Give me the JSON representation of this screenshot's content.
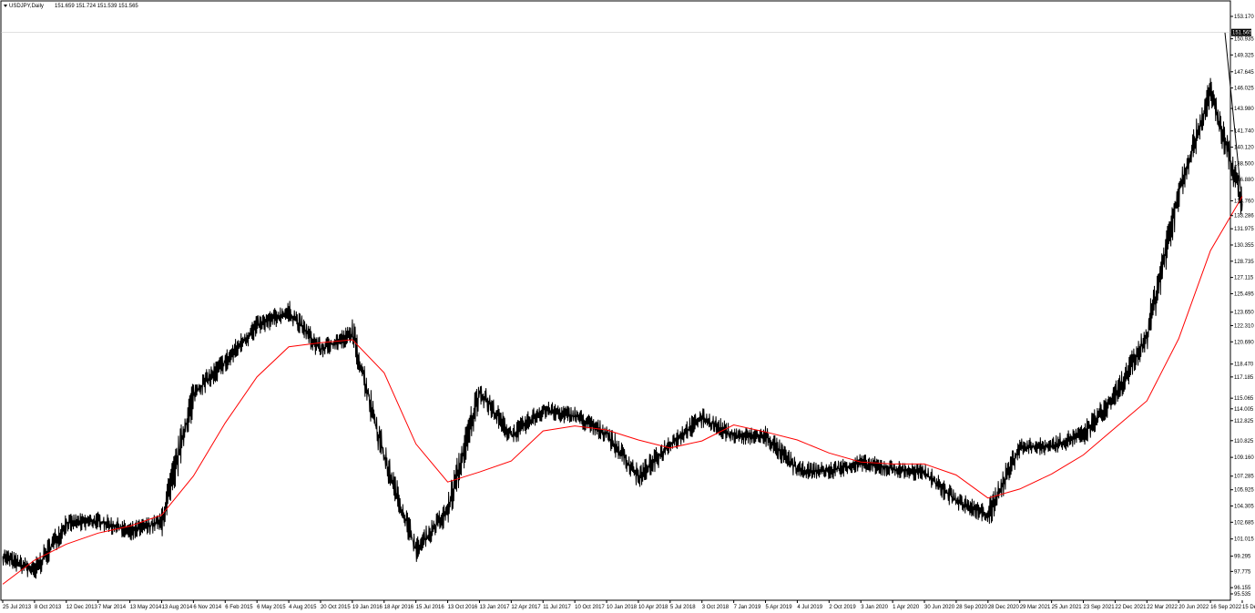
{
  "header": {
    "menu_icon": "triangle-down-icon",
    "symbol_timeframe": "USDJPY,Daily",
    "ohlc": "151.659 151.724 151.539 151.565"
  },
  "chart_data": {
    "type": "line",
    "title": "USDJPY,Daily",
    "colors": {
      "price": "#000000",
      "moving_average": "#ff0000",
      "background": "#ffffff",
      "last_price_label": "#000000"
    },
    "ylim": [
      95.535,
      153.17
    ],
    "y_ticks": [
      "153.170",
      "150.935",
      "149.325",
      "147.645",
      "146.025",
      "143.980",
      "141.740",
      "140.120",
      "138.500",
      "136.880",
      "134.760",
      "133.286",
      "131.975",
      "130.355",
      "128.735",
      "127.115",
      "125.495",
      "123.650",
      "122.310",
      "120.690",
      "118.470",
      "117.185",
      "115.065",
      "114.005",
      "112.825",
      "110.825",
      "109.160",
      "107.285",
      "105.925",
      "104.305",
      "102.685",
      "101.015",
      "99.295",
      "97.775",
      "96.155",
      "95.535"
    ],
    "last_price": "151.565",
    "x_ticks": [
      "25 Jul 2013",
      "8 Oct 2013",
      "12 Dec 2013",
      "7 Mar 2014",
      "13 May 2014",
      "13 Aug 2014",
      "6 Nov 2014",
      "6 Feb 2015",
      "6 May 2015",
      "4 Aug 2015",
      "20 Oct 2015",
      "19 Jan 2016",
      "18 Apr 2016",
      "15 Jul 2016",
      "13 Oct 2016",
      "13 Jan 2017",
      "12 Apr 2017",
      "11 Jul 2017",
      "10 Oct 2017",
      "10 Jan 2018",
      "10 Apr 2018",
      "5 Jul 2018",
      "3 Oct 2018",
      "7 Jan 2019",
      "5 Apr 2019",
      "4 Jul 2019",
      "2 Oct 2019",
      "3 Jan 2020",
      "1 Apr 2020",
      "30 Jun 2020",
      "28 Sep 2020",
      "28 Dec 2020",
      "29 Mar 2021",
      "25 Jun 2021",
      "23 Sep 2021",
      "22 Dec 2021",
      "22 Mar 2022",
      "20 Jun 2022",
      "16 Sep 2022",
      "15 Dec 2022"
    ],
    "series": [
      {
        "x": [
          "25 Jul 2013",
          "8 Oct 2013",
          "12 Dec 2013",
          "7 Mar 2014",
          "13 May 2014",
          "13 Aug 2014",
          "6 Nov 2014",
          "6 Feb 2015",
          "6 May 2015",
          "4 Aug 2015",
          "20 Oct 2015",
          "19 Jan 2016",
          "18 Apr 2016",
          "15 Jul 2016",
          "13 Oct 2016",
          "13 Jan 2017",
          "12 Apr 2017",
          "11 Jul 2017",
          "10 Oct 2017",
          "10 Jan 2018",
          "10 Apr 2018",
          "5 Jul 2018",
          "3 Oct 2018",
          "7 Jan 2019",
          "5 Apr 2019",
          "4 Jul 2019",
          "2 Oct 2019",
          "3 Jan 2020",
          "1 Apr 2020",
          "30 Jun 2020",
          "28 Sep 2020",
          "28 Dec 2020",
          "29 Mar 2021",
          "25 Jun 2021",
          "23 Sep 2021",
          "22 Dec 2021",
          "22 Mar 2022",
          "20 Jun 2022",
          "16 Sep 2022",
          "15 Dec 2022"
        ],
        "values": [
          99.3,
          97.8,
          102.6,
          102.8,
          101.8,
          102.7,
          115.5,
          118.7,
          122.3,
          123.7,
          119.9,
          121.5,
          109.1,
          99.9,
          103.8,
          115.8,
          111.3,
          113.9,
          113.3,
          111.5,
          107.2,
          110.5,
          113.1,
          111.3,
          111.3,
          107.9,
          107.8,
          108.6,
          108.0,
          107.6,
          104.8,
          103.4,
          110.2,
          110.3,
          111.5,
          115.3,
          121.3,
          135.8,
          145.6,
          134.4
        ]
      },
      {
        "x": [
          "25 Jul 2013",
          "8 Oct 2013",
          "12 Dec 2013",
          "7 Mar 2014",
          "13 May 2014",
          "13 Aug 2014",
          "6 Nov 2014",
          "6 Feb 2015",
          "6 May 2015",
          "4 Aug 2015",
          "20 Oct 2015",
          "19 Jan 2016",
          "18 Apr 2016",
          "15 Jul 2016",
          "13 Oct 2016",
          "13 Jan 2017",
          "12 Apr 2017",
          "11 Jul 2017",
          "10 Oct 2017",
          "10 Jan 2018",
          "10 Apr 2018",
          "5 Jul 2018",
          "3 Oct 2018",
          "7 Jan 2019",
          "5 Apr 2019",
          "4 Jul 2019",
          "2 Oct 2019",
          "3 Jan 2020",
          "1 Apr 2020",
          "30 Jun 2020",
          "28 Sep 2020",
          "28 Dec 2020",
          "29 Mar 2021",
          "25 Jun 2021",
          "23 Sep 2021",
          "22 Dec 2021",
          "22 Mar 2022",
          "20 Jun 2022",
          "16 Sep 2022",
          "15 Dec 2022"
        ],
        "values": [
          96.5,
          98.9,
          100.5,
          101.6,
          102.3,
          103.4,
          107.3,
          112.6,
          117.2,
          120.2,
          120.6,
          120.9,
          117.6,
          110.5,
          106.7,
          107.7,
          108.8,
          111.8,
          112.3,
          111.9,
          110.9,
          110.1,
          110.8,
          112.4,
          111.7,
          110.9,
          109.6,
          108.7,
          108.5,
          108.5,
          107.4,
          105.1,
          106.0,
          107.5,
          109.4,
          112.1,
          114.8,
          121.0,
          129.8,
          135.2
        ]
      }
    ],
    "grid": false,
    "legend": "none"
  }
}
